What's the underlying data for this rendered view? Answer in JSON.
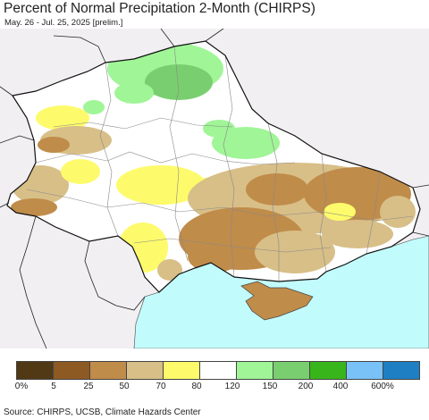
{
  "title": "Percent of Normal Precipitation 2-Month (CHIRPS)",
  "subtitle": "May. 26 - Jul. 25, 2025 [prelim.]",
  "source": "Source: CHIRPS, UCSB, Climate Hazards Center",
  "legend": {
    "colors": [
      "#513915",
      "#8e5a23",
      "#c08c4a",
      "#d8bf88",
      "#fdfb6b",
      "#ffffff",
      "#a0f597",
      "#79cf6f",
      "#39b51c",
      "#79c2f8",
      "#1e7fc3"
    ],
    "labels": [
      "0%",
      "5",
      "25",
      "50",
      "70",
      "80",
      "120",
      "150",
      "200",
      "400",
      "600%"
    ]
  },
  "colors": {
    "sea": "#c2fbfb",
    "outside": "#f2eff2",
    "border": "#222222",
    "oblast": "#888888"
  }
}
